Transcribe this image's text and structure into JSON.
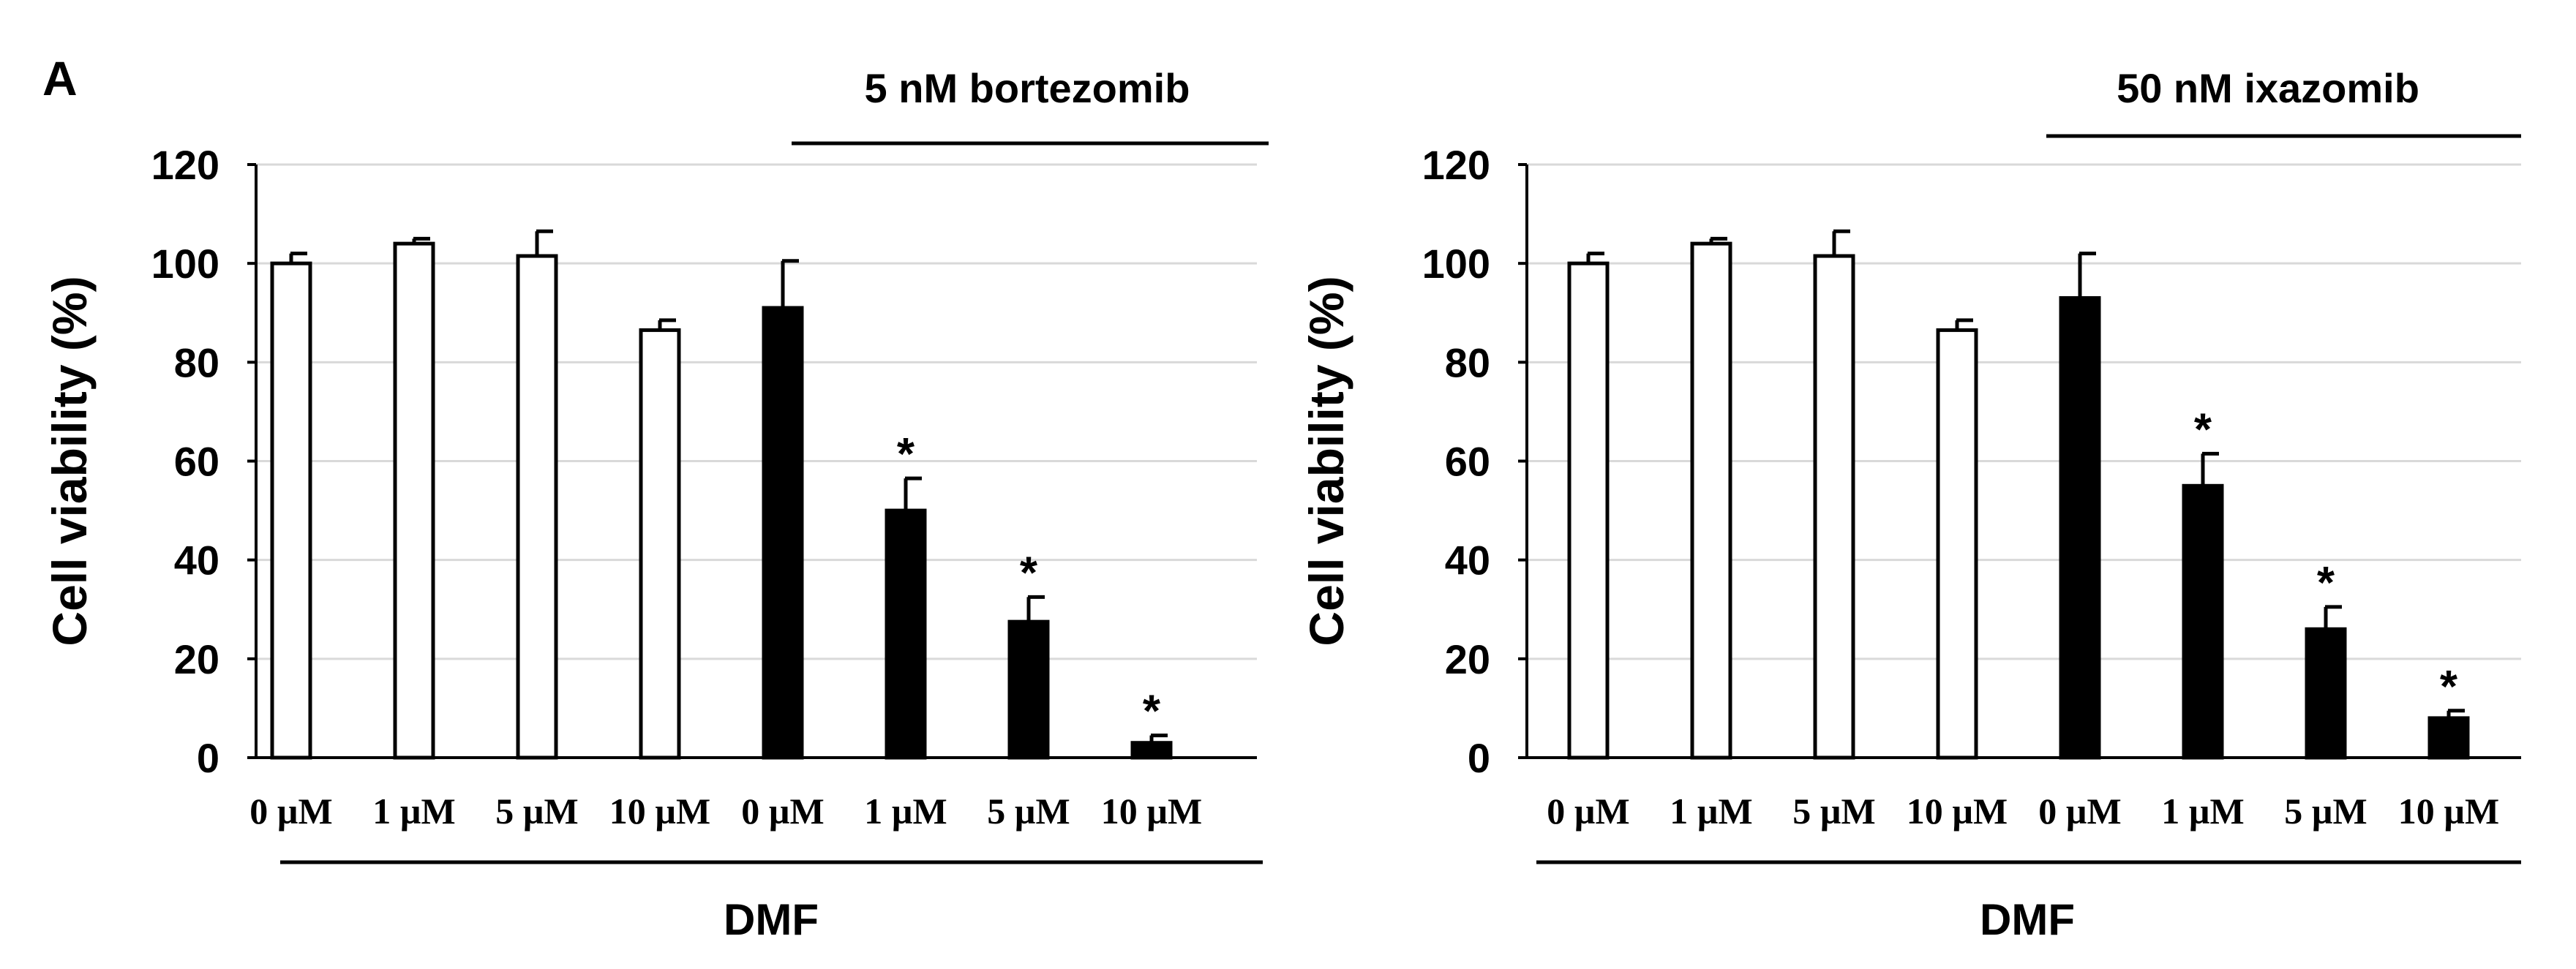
{
  "panel_label": "A",
  "chart_data": [
    {
      "type": "bar",
      "title": "5 nM bortezomib",
      "ylabel": "Cell viability (%)",
      "group_label": "DMF",
      "ylim": [
        0,
        120
      ],
      "yticks": [
        "0",
        "20",
        "40",
        "60",
        "80",
        "100",
        "120"
      ],
      "categories": [
        "0 µM",
        "1 µM",
        "5 µM",
        "10 µM",
        "0 µM",
        "1 µM",
        "5 µM",
        "10 µM"
      ],
      "values": [
        100,
        104,
        101.5,
        86.5,
        91,
        50,
        27.5,
        3
      ],
      "errors": [
        2,
        1,
        5,
        2,
        9.5,
        6.5,
        5,
        1.5
      ],
      "fill": [
        "#ffffff",
        "#ffffff",
        "#ffffff",
        "#ffffff",
        "#000000",
        "#000000",
        "#000000",
        "#000000"
      ],
      "significance": [
        "",
        "",
        "",
        "",
        "",
        "*",
        "*",
        "*"
      ],
      "grid": true,
      "treated_span": [
        4,
        7
      ]
    },
    {
      "type": "bar",
      "title": "50 nM ixazomib",
      "ylabel": "Cell viability (%)",
      "group_label": "DMF",
      "ylim": [
        0,
        120
      ],
      "yticks": [
        "0",
        "20",
        "40",
        "60",
        "80",
        "100",
        "120"
      ],
      "categories": [
        "0 µM",
        "1 µM",
        "5 µM",
        "10 µM",
        "0 µM",
        "1 µM",
        "5 µM",
        "10 µM"
      ],
      "values": [
        100,
        104,
        101.5,
        86.5,
        93,
        55,
        26,
        8
      ],
      "errors": [
        2,
        1,
        5,
        2,
        9,
        6.5,
        4.5,
        1.5
      ],
      "fill": [
        "#ffffff",
        "#ffffff",
        "#ffffff",
        "#ffffff",
        "#000000",
        "#000000",
        "#000000",
        "#000000"
      ],
      "significance": [
        "",
        "",
        "",
        "",
        "",
        "*",
        "*",
        "*"
      ],
      "grid": true,
      "treated_span": [
        4,
        7
      ]
    }
  ]
}
